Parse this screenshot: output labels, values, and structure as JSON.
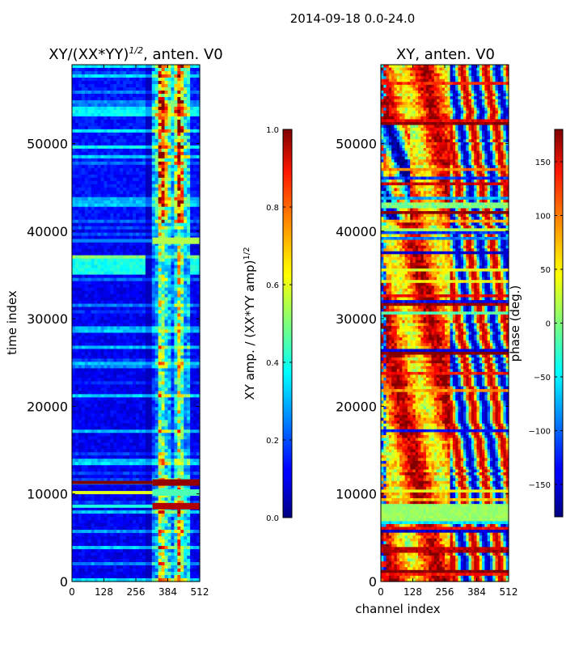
{
  "suptitle": "2014-09-18 0.0-24.0",
  "chart_data": [
    {
      "type": "heatmap",
      "title": "XY/(XX*YY)^{1/2}, anten. V0",
      "title_main": "XY/(XX*YY)",
      "title_exp": "1/2",
      "title_suffix": ", anten. V0",
      "xlabel": "",
      "ylabel": "time index",
      "xlim": [
        0,
        512
      ],
      "ylim": [
        0,
        59000
      ],
      "xticks": [
        0,
        128,
        256,
        384,
        512
      ],
      "yticks": [
        0,
        10000,
        20000,
        30000,
        40000,
        50000
      ],
      "colorbar": {
        "label": "XY amp. / (XX*YY amp)^{1/2}",
        "label_main": "XY amp. / (XX*YY amp)",
        "label_exp": "1/2",
        "range": [
          0.0,
          1.0
        ],
        "ticks": [
          0.0,
          0.2,
          0.4,
          0.6,
          0.8,
          1.0
        ],
        "tick_labels": [
          "0.0",
          "0.2",
          "0.4",
          "0.6",
          "0.8",
          "1.0"
        ],
        "colormap": "jet"
      }
    },
    {
      "type": "heatmap",
      "title": "XY, anten. V0",
      "xlabel": "channel index",
      "ylabel": "",
      "xlim": [
        0,
        512
      ],
      "ylim": [
        0,
        59000
      ],
      "xticks": [
        0,
        128,
        256,
        384,
        512
      ],
      "yticks": [
        0,
        10000,
        20000,
        30000,
        40000,
        50000
      ],
      "colorbar": {
        "label": "phase (deg.)",
        "range": [
          -180,
          180
        ],
        "ticks": [
          -150,
          -100,
          -50,
          0,
          50,
          100,
          150
        ],
        "tick_labels": [
          "−150",
          "−100",
          "−50",
          "0",
          "50",
          "100",
          "150"
        ],
        "colormap": "jet"
      }
    }
  ]
}
